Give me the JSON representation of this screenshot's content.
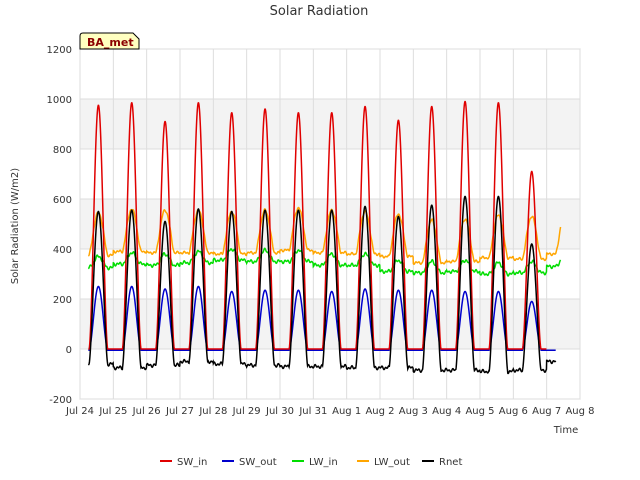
{
  "chart_data": {
    "type": "line",
    "title": "Solar Radiation",
    "xlabel": "Time",
    "ylabel": "Solar Radiation (W/m2)",
    "ylim": [
      -200,
      1200
    ],
    "xlim": [
      "2023-07-24",
      "2023-08-08"
    ],
    "yticks": [
      -200,
      0,
      200,
      400,
      600,
      800,
      1000,
      1200
    ],
    "xtick_labels": [
      "Jul 24",
      "Jul 25",
      "Jul 26",
      "Jul 27",
      "Jul 28",
      "Jul 29",
      "Jul 30",
      "Jul 31",
      "Aug 1",
      "Aug 2",
      "Aug 3",
      "Aug 4",
      "Aug 5",
      "Aug 6",
      "Aug 7",
      "Aug 8"
    ],
    "grid": true,
    "badge": "BA_met",
    "legend_position": "bottom-center",
    "days": [
      "2023-07-24",
      "2023-07-25",
      "2023-07-26",
      "2023-07-27",
      "2023-07-28",
      "2023-07-29",
      "2023-07-30",
      "2023-07-31",
      "2023-08-01",
      "2023-08-02",
      "2023-08-03",
      "2023-08-04",
      "2023-08-05",
      "2023-08-06",
      "2023-08-07"
    ],
    "data_start": "2023-07-24T06:00",
    "data_end": "2023-08-07T10:00",
    "series": [
      {
        "name": "SW_in",
        "color": "#e00000",
        "kind": "daily_peak",
        "night": 0,
        "daily_peak": [
          975,
          985,
          910,
          985,
          945,
          960,
          945,
          945,
          970,
          915,
          970,
          990,
          985,
          710
        ]
      },
      {
        "name": "SW_out",
        "color": "#0000cc",
        "kind": "daily_peak",
        "night": -5,
        "daily_peak": [
          250,
          250,
          240,
          250,
          230,
          235,
          235,
          230,
          240,
          235,
          235,
          230,
          230,
          190
        ]
      },
      {
        "name": "LW_in",
        "color": "#00dd00",
        "kind": "daily_base",
        "amp": 45,
        "daily_base": [
          325,
          340,
          335,
          345,
          355,
          350,
          350,
          335,
          335,
          310,
          305,
          310,
          300,
          305,
          330
        ]
      },
      {
        "name": "LW_out",
        "color": "#ffa500",
        "kind": "daily_base",
        "amp": 170,
        "daily_base": [
          375,
          390,
          385,
          385,
          380,
          385,
          395,
          385,
          380,
          370,
          345,
          350,
          365,
          360,
          380
        ]
      },
      {
        "name": "Rnet",
        "color": "#000000",
        "kind": "daily_peak",
        "daily_peak": [
          550,
          555,
          510,
          560,
          550,
          555,
          555,
          555,
          570,
          530,
          575,
          610,
          610,
          420
        ],
        "daily_night": [
          -60,
          -75,
          -65,
          -50,
          -60,
          -65,
          -70,
          -70,
          -75,
          -75,
          -85,
          -85,
          -90,
          -85,
          -50
        ]
      }
    ]
  }
}
